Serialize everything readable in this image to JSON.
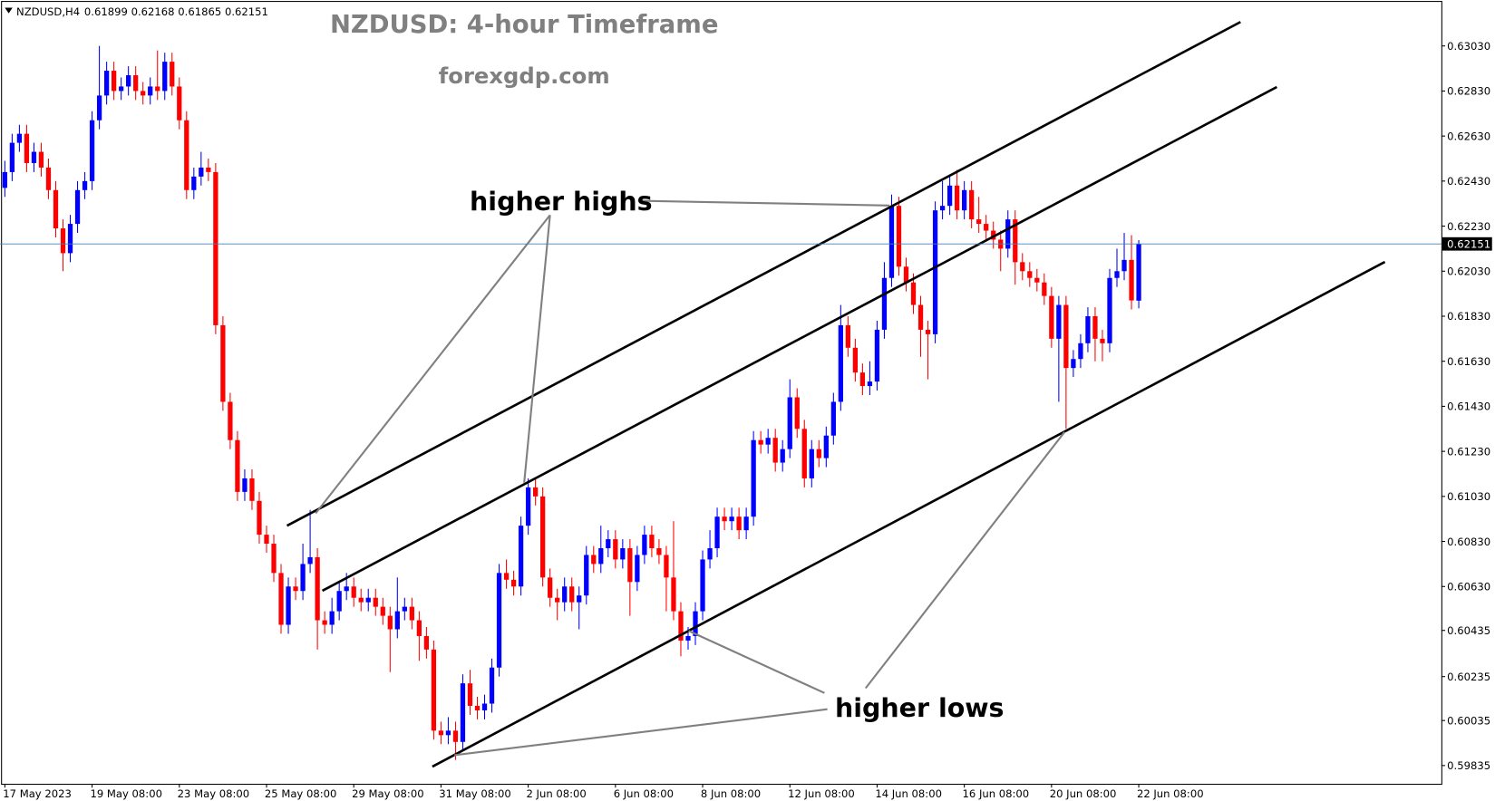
{
  "chart_data": {
    "type": "candlestick",
    "symbol": "NZDUSD,H4",
    "title": "NZDUSD: 4-hour Timeframe",
    "subtitle": "forexgdp.com",
    "annotations": [
      "higher highs",
      "higher lows"
    ],
    "up_color": "#0000ff",
    "down_color": "#ff0000",
    "ylim": [
      0.59754,
      0.63234
    ],
    "yticks": [
      {
        "value": 0.6303,
        "label": "0.63030"
      },
      {
        "value": 0.6283,
        "label": "0.62830"
      },
      {
        "value": 0.6263,
        "label": "0.62630"
      },
      {
        "value": 0.6243,
        "label": "0.62430"
      },
      {
        "value": 0.6223,
        "label": "0.62230"
      },
      {
        "value": 0.6203,
        "label": "0.62030"
      },
      {
        "value": 0.6183,
        "label": "0.61830"
      },
      {
        "value": 0.6163,
        "label": "0.61630"
      },
      {
        "value": 0.6143,
        "label": "0.61430"
      },
      {
        "value": 0.6123,
        "label": "0.61230"
      },
      {
        "value": 0.6103,
        "label": "0.61030"
      },
      {
        "value": 0.6083,
        "label": "0.60830"
      },
      {
        "value": 0.6063,
        "label": "0.60630"
      },
      0.60435,
      {
        "value": 0.6023,
        "label": "0.60235"
      },
      0.60035,
      0.59835
    ],
    "xlim": [
      0,
      156
    ],
    "xticks": [
      {
        "value": 0,
        "label": "17 May 2023"
      },
      {
        "value": 12,
        "label": "19 May 08:00"
      },
      {
        "value": 24,
        "label": "23 May 08:00"
      },
      {
        "value": 36,
        "label": "25 May 08:00"
      },
      {
        "value": 48,
        "label": "29 May 08:00"
      },
      {
        "value": 60,
        "label": "31 May 08:00"
      },
      {
        "value": 72,
        "label": "2 Jun 08:00"
      },
      {
        "value": 84,
        "label": "6 Jun 08:00"
      },
      {
        "value": 96,
        "label": "8 Jun 08:00"
      },
      {
        "value": 108,
        "label": "12 Jun 08:00"
      },
      {
        "value": 120,
        "label": "14 Jun 08:00"
      },
      {
        "value": 132,
        "label": "16 Jun 08:00"
      },
      {
        "value": 144,
        "label": "20 Jun 08:00"
      },
      {
        "value": 156,
        "label": "22 Jun 08:00"
      }
    ],
    "ohlc": [
      [
        0.624,
        0.6252,
        0.6236,
        0.6247
      ],
      [
        0.6247,
        0.6264,
        0.6243,
        0.626
      ],
      [
        0.626,
        0.6268,
        0.6256,
        0.6264
      ],
      [
        0.6264,
        0.6268,
        0.6247,
        0.6251
      ],
      [
        0.6251,
        0.626,
        0.6247,
        0.6256
      ],
      [
        0.6256,
        0.626,
        0.6245,
        0.6249
      ],
      [
        0.6249,
        0.6253,
        0.6235,
        0.6239
      ],
      [
        0.6239,
        0.6243,
        0.6218,
        0.6222
      ],
      [
        0.6222,
        0.6226,
        0.6203,
        0.6211
      ],
      [
        0.6211,
        0.6228,
        0.6207,
        0.6224
      ],
      [
        0.6224,
        0.6243,
        0.622,
        0.6239
      ],
      [
        0.6239,
        0.6247,
        0.6235,
        0.6243
      ],
      [
        0.6243,
        0.6274,
        0.6239,
        0.627
      ],
      [
        0.627,
        0.6303,
        0.6266,
        0.6281
      ],
      [
        0.6281,
        0.6296,
        0.6277,
        0.6292
      ],
      [
        0.6292,
        0.6296,
        0.6279,
        0.6283
      ],
      [
        0.6283,
        0.6289,
        0.6279,
        0.6285
      ],
      [
        0.6285,
        0.6294,
        0.6281,
        0.629
      ],
      [
        0.629,
        0.6294,
        0.6279,
        0.6283
      ],
      [
        0.6283,
        0.6287,
        0.6277,
        0.6281
      ],
      [
        0.6281,
        0.6289,
        0.6277,
        0.6285
      ],
      [
        0.6285,
        0.6301,
        0.6279,
        0.6283
      ],
      [
        0.6283,
        0.63,
        0.6279,
        0.6296
      ],
      [
        0.6296,
        0.63,
        0.6281,
        0.6285
      ],
      [
        0.6285,
        0.6289,
        0.6266,
        0.627
      ],
      [
        0.627,
        0.6274,
        0.6235,
        0.6239
      ],
      [
        0.6239,
        0.6249,
        0.6235,
        0.6245
      ],
      [
        0.6245,
        0.6256,
        0.6241,
        0.6249
      ],
      [
        0.6249,
        0.6253,
        0.6243,
        0.6247
      ],
      [
        0.6247,
        0.6251,
        0.6175,
        0.6179
      ],
      [
        0.6179,
        0.6183,
        0.6141,
        0.6145
      ],
      [
        0.6145,
        0.6149,
        0.6124,
        0.6128
      ],
      [
        0.6128,
        0.6132,
        0.6101,
        0.6105
      ],
      [
        0.6105,
        0.6115,
        0.6101,
        0.6111
      ],
      [
        0.6111,
        0.6115,
        0.6097,
        0.6101
      ],
      [
        0.6101,
        0.6105,
        0.6082,
        0.6086
      ],
      [
        0.6086,
        0.609,
        0.6078,
        0.6082
      ],
      [
        0.6082,
        0.6086,
        0.6065,
        0.6069
      ],
      [
        0.6069,
        0.6073,
        0.6042,
        0.6046
      ],
      [
        0.6046,
        0.6067,
        0.6042,
        0.6063
      ],
      [
        0.6063,
        0.6067,
        0.6057,
        0.6061
      ],
      [
        0.6061,
        0.6082,
        0.6057,
        0.6073
      ],
      [
        0.6073,
        0.6097,
        0.6069,
        0.6076
      ],
      [
        0.6076,
        0.608,
        0.6035,
        0.6048
      ],
      [
        0.6048,
        0.6052,
        0.6042,
        0.6046
      ],
      [
        0.6046,
        0.6058,
        0.6042,
        0.6052
      ],
      [
        0.6052,
        0.6065,
        0.6048,
        0.6061
      ],
      [
        0.6061,
        0.6069,
        0.6057,
        0.6063
      ],
      [
        0.6063,
        0.6067,
        0.6054,
        0.6058
      ],
      [
        0.6058,
        0.6062,
        0.6052,
        0.6056
      ],
      [
        0.6056,
        0.6062,
        0.6052,
        0.6058
      ],
      [
        0.6058,
        0.6062,
        0.605,
        0.6054
      ],
      [
        0.6054,
        0.6058,
        0.6046,
        0.605
      ],
      [
        0.605,
        0.6054,
        0.6025,
        0.6044
      ],
      [
        0.6044,
        0.6067,
        0.604,
        0.6052
      ],
      [
        0.6052,
        0.6058,
        0.6048,
        0.6054
      ],
      [
        0.6054,
        0.6058,
        0.6044,
        0.6048
      ],
      [
        0.6048,
        0.6052,
        0.603,
        0.6041
      ],
      [
        0.6041,
        0.6045,
        0.6031,
        0.6035
      ],
      [
        0.6035,
        0.6039,
        0.5995,
        0.5999
      ],
      [
        0.5999,
        0.6003,
        0.5993,
        0.5997
      ],
      [
        0.5997,
        0.6005,
        0.5993,
        0.5999
      ],
      [
        0.5999,
        0.6003,
        0.5986,
        0.5994
      ],
      [
        0.5994,
        0.6024,
        0.599,
        0.602
      ],
      [
        0.602,
        0.6026,
        0.6006,
        0.601
      ],
      [
        0.601,
        0.6014,
        0.6004,
        0.6008
      ],
      [
        0.6008,
        0.6015,
        0.6004,
        0.6011
      ],
      [
        0.6011,
        0.6031,
        0.6007,
        0.6027
      ],
      [
        0.6027,
        0.6073,
        0.6023,
        0.6069
      ],
      [
        0.6069,
        0.6075,
        0.6062,
        0.6066
      ],
      [
        0.6066,
        0.607,
        0.6059,
        0.6063
      ],
      [
        0.6063,
        0.6094,
        0.6059,
        0.609
      ],
      [
        0.609,
        0.6111,
        0.6086,
        0.6107
      ],
      [
        0.6107,
        0.6111,
        0.6099,
        0.6103
      ],
      [
        0.6103,
        0.6107,
        0.6063,
        0.6067
      ],
      [
        0.6067,
        0.6071,
        0.6054,
        0.6058
      ],
      [
        0.6058,
        0.6062,
        0.6048,
        0.6056
      ],
      [
        0.6056,
        0.6067,
        0.6052,
        0.6063
      ],
      [
        0.6063,
        0.6067,
        0.6052,
        0.6056
      ],
      [
        0.6056,
        0.6063,
        0.6044,
        0.6059
      ],
      [
        0.6059,
        0.6081,
        0.6055,
        0.6077
      ],
      [
        0.6077,
        0.6081,
        0.6069,
        0.6073
      ],
      [
        0.6073,
        0.609,
        0.6069,
        0.608
      ],
      [
        0.608,
        0.6088,
        0.6076,
        0.6084
      ],
      [
        0.6084,
        0.6088,
        0.6071,
        0.6075
      ],
      [
        0.6075,
        0.6084,
        0.6071,
        0.608
      ],
      [
        0.608,
        0.6084,
        0.605,
        0.6065
      ],
      [
        0.6065,
        0.6081,
        0.6061,
        0.6077
      ],
      [
        0.6077,
        0.609,
        0.6073,
        0.6086
      ],
      [
        0.6086,
        0.609,
        0.6076,
        0.608
      ],
      [
        0.608,
        0.6084,
        0.6073,
        0.6077
      ],
      [
        0.6077,
        0.6081,
        0.6052,
        0.6067
      ],
      [
        0.6067,
        0.6092,
        0.6048,
        0.6052
      ],
      [
        0.6052,
        0.6056,
        0.6032,
        0.6039
      ],
      [
        0.6039,
        0.6045,
        0.6035,
        0.6041
      ],
      [
        0.6041,
        0.6056,
        0.6037,
        0.6052
      ],
      [
        0.6052,
        0.6079,
        0.6048,
        0.6075
      ],
      [
        0.6075,
        0.6088,
        0.6071,
        0.608
      ],
      [
        0.608,
        0.6098,
        0.6076,
        0.6094
      ],
      [
        0.6094,
        0.6098,
        0.6088,
        0.6092
      ],
      [
        0.6092,
        0.6098,
        0.6088,
        0.6094
      ],
      [
        0.6094,
        0.6098,
        0.6084,
        0.6088
      ],
      [
        0.6088,
        0.6098,
        0.6084,
        0.6094
      ],
      [
        0.6094,
        0.6132,
        0.609,
        0.6128
      ],
      [
        0.6128,
        0.6132,
        0.6122,
        0.6126
      ],
      [
        0.6126,
        0.6133,
        0.6122,
        0.6129
      ],
      [
        0.6129,
        0.6133,
        0.6114,
        0.6118
      ],
      [
        0.6118,
        0.6128,
        0.6114,
        0.6124
      ],
      [
        0.6124,
        0.6155,
        0.612,
        0.6147
      ],
      [
        0.6147,
        0.6151,
        0.6129,
        0.6133
      ],
      [
        0.6133,
        0.6137,
        0.6107,
        0.6111
      ],
      [
        0.6111,
        0.6128,
        0.6107,
        0.6124
      ],
      [
        0.6124,
        0.6128,
        0.6116,
        0.612
      ],
      [
        0.612,
        0.6134,
        0.6116,
        0.613
      ],
      [
        0.613,
        0.6149,
        0.6126,
        0.6145
      ],
      [
        0.6145,
        0.6188,
        0.6141,
        0.6179
      ],
      [
        0.6179,
        0.6183,
        0.6165,
        0.6169
      ],
      [
        0.6169,
        0.6173,
        0.6154,
        0.6158
      ],
      [
        0.6158,
        0.6162,
        0.6148,
        0.6152
      ],
      [
        0.6152,
        0.6163,
        0.6148,
        0.6154
      ],
      [
        0.6154,
        0.6181,
        0.615,
        0.6177
      ],
      [
        0.6177,
        0.6207,
        0.6173,
        0.62
      ],
      [
        0.62,
        0.6237,
        0.6196,
        0.6232
      ],
      [
        0.6232,
        0.6236,
        0.6201,
        0.6205
      ],
      [
        0.6205,
        0.6209,
        0.6194,
        0.6198
      ],
      [
        0.6198,
        0.6202,
        0.6184,
        0.6188
      ],
      [
        0.6188,
        0.6192,
        0.6165,
        0.6177
      ],
      [
        0.6177,
        0.6181,
        0.6155,
        0.6175
      ],
      [
        0.6175,
        0.6234,
        0.6171,
        0.623
      ],
      [
        0.623,
        0.6243,
        0.6226,
        0.6232
      ],
      [
        0.6232,
        0.6245,
        0.6228,
        0.6241
      ],
      [
        0.6241,
        0.6248,
        0.6226,
        0.623
      ],
      [
        0.623,
        0.6243,
        0.6226,
        0.6239
      ],
      [
        0.6239,
        0.6243,
        0.6222,
        0.6226
      ],
      [
        0.6226,
        0.6236,
        0.622,
        0.6224
      ],
      [
        0.6224,
        0.6228,
        0.6217,
        0.6221
      ],
      [
        0.6221,
        0.6225,
        0.6213,
        0.6217
      ],
      [
        0.6217,
        0.6221,
        0.6203,
        0.6213
      ],
      [
        0.6213,
        0.623,
        0.6209,
        0.6226
      ],
      [
        0.6226,
        0.623,
        0.6197,
        0.6207
      ],
      [
        0.6207,
        0.6211,
        0.6199,
        0.6203
      ],
      [
        0.6203,
        0.6207,
        0.6196,
        0.62
      ],
      [
        0.62,
        0.6204,
        0.6194,
        0.6198
      ],
      [
        0.6198,
        0.6202,
        0.6188,
        0.6192
      ],
      [
        0.6192,
        0.6196,
        0.6169,
        0.6173
      ],
      [
        0.6173,
        0.6192,
        0.6145,
        0.6188
      ],
      [
        0.6188,
        0.6192,
        0.6133,
        0.616
      ],
      [
        0.616,
        0.6168,
        0.6156,
        0.6164
      ],
      [
        0.6164,
        0.6175,
        0.616,
        0.6171
      ],
      [
        0.6171,
        0.6187,
        0.6167,
        0.6183
      ],
      [
        0.6183,
        0.6187,
        0.6163,
        0.6173
      ],
      [
        0.6173,
        0.6177,
        0.6163,
        0.6171
      ],
      [
        0.6171,
        0.6204,
        0.6167,
        0.62
      ],
      [
        0.62,
        0.6213,
        0.6196,
        0.6203
      ],
      [
        0.6203,
        0.622,
        0.6199,
        0.6208
      ],
      [
        0.6208,
        0.6219,
        0.6186,
        0.619
      ],
      [
        0.61899,
        0.62168,
        0.61865,
        0.62151
      ]
    ]
  }
}
